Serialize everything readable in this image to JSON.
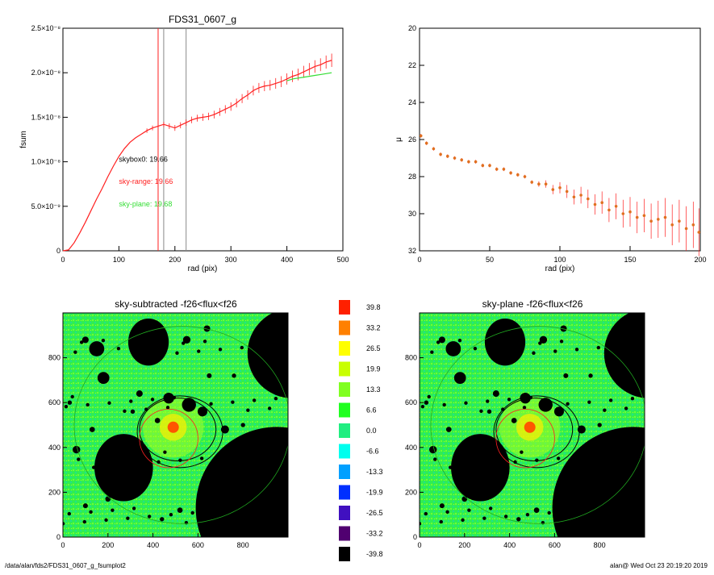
{
  "footer_left": "/data/alan/fds2/FDS31_0607_g_fsumplot2",
  "footer_right": "alan@  Wed Oct 23 20:19:20 2019",
  "colors": {
    "black": "#000000",
    "red": "#ff2020",
    "green": "#33dd33",
    "orange": "#e07020",
    "gray": "#888888"
  },
  "chart_data": [
    {
      "id": "fsum_profile",
      "type": "line",
      "title": "FDS31_0607_g",
      "xlabel": "rad (pix)",
      "ylabel": "fsum",
      "xlim": [
        0,
        500
      ],
      "ylim": [
        0,
        2.5e-08
      ],
      "x_ticks": [
        "0",
        "100",
        "200",
        "300",
        "400",
        "500"
      ],
      "y_ticks": [
        "0",
        "5.0×10⁻⁹",
        "1.0×10⁻⁸",
        "1.5×10⁻⁸",
        "2.0×10⁻⁸",
        "2.5×10⁻⁸"
      ],
      "vlines": [
        {
          "x": 170,
          "color": "red"
        },
        {
          "x": 180,
          "color": "gray"
        },
        {
          "x": 220,
          "color": "gray"
        }
      ],
      "annotations": [
        {
          "text": "skybox0: 19.66",
          "color": "black",
          "x": 100,
          "y": 1e-08
        },
        {
          "text": "sky-range: 19.66",
          "color": "red",
          "x": 100,
          "y": 7.5e-09
        },
        {
          "text": "sky-plane: 19.68",
          "color": "green",
          "x": 100,
          "y": 5e-09
        }
      ],
      "series": [
        {
          "color": "red",
          "x": [
            0,
            10,
            20,
            30,
            40,
            50,
            60,
            70,
            80,
            90,
            100,
            110,
            120,
            130,
            140,
            150,
            160,
            170,
            180,
            190,
            200,
            210,
            220,
            230,
            240,
            250,
            260,
            270,
            280,
            290,
            300,
            310,
            320,
            330,
            340,
            350,
            360,
            370,
            380,
            390,
            400,
            410,
            420,
            430,
            440,
            450,
            460,
            470,
            480
          ],
          "y": [
            0,
            1e-10,
            9e-10,
            2e-09,
            3.2e-09,
            4.5e-09,
            5.8e-09,
            7e-09,
            8.3e-09,
            9.5e-09,
            1.06e-08,
            1.15e-08,
            1.22e-08,
            1.27e-08,
            1.31e-08,
            1.35e-08,
            1.38e-08,
            1.4e-08,
            1.42e-08,
            1.4e-08,
            1.38e-08,
            1.41e-08,
            1.44e-08,
            1.47e-08,
            1.49e-08,
            1.5e-08,
            1.51e-08,
            1.53e-08,
            1.56e-08,
            1.59e-08,
            1.62e-08,
            1.66e-08,
            1.71e-08,
            1.75e-08,
            1.8e-08,
            1.83e-08,
            1.85e-08,
            1.86e-08,
            1.88e-08,
            1.9e-08,
            1.93e-08,
            1.96e-08,
            1.98e-08,
            2.01e-08,
            2.04e-08,
            2.07e-08,
            2.09e-08,
            2.12e-08,
            2.14e-08
          ]
        },
        {
          "color": "green",
          "x": [
            400,
            410,
            420,
            430,
            440,
            450,
            460,
            470,
            480
          ],
          "y": [
            1.91e-08,
            1.93e-08,
            1.94e-08,
            1.95e-08,
            1.96e-08,
            1.97e-08,
            1.98e-08,
            1.99e-08,
            2e-08
          ]
        }
      ]
    },
    {
      "id": "mu_profile",
      "type": "scatter",
      "xlabel": "rad (pix)",
      "ylabel": "μ",
      "xlim": [
        0,
        200
      ],
      "ylim": [
        32,
        20
      ],
      "x_ticks": [
        "0",
        "50",
        "100",
        "150",
        "200"
      ],
      "y_ticks": [
        "20",
        "22",
        "24",
        "26",
        "28",
        "30",
        "32"
      ],
      "points": [
        [
          1,
          25.8
        ],
        [
          5,
          26.2
        ],
        [
          10,
          26.5
        ],
        [
          15,
          26.8
        ],
        [
          20,
          26.9
        ],
        [
          25,
          27.0
        ],
        [
          30,
          27.1
        ],
        [
          35,
          27.2
        ],
        [
          40,
          27.2
        ],
        [
          45,
          27.4
        ],
        [
          50,
          27.4
        ],
        [
          55,
          27.6
        ],
        [
          60,
          27.6
        ],
        [
          65,
          27.8
        ],
        [
          70,
          27.9
        ],
        [
          75,
          28.0
        ],
        [
          80,
          28.3
        ],
        [
          85,
          28.4
        ],
        [
          90,
          28.4
        ],
        [
          95,
          28.7
        ],
        [
          100,
          28.6
        ],
        [
          105,
          28.8
        ],
        [
          110,
          29.1
        ],
        [
          115,
          29.0
        ],
        [
          120,
          29.2
        ],
        [
          125,
          29.5
        ],
        [
          130,
          29.4
        ],
        [
          135,
          29.8
        ],
        [
          140,
          29.6
        ],
        [
          145,
          30.0
        ],
        [
          150,
          29.9
        ],
        [
          155,
          30.2
        ],
        [
          160,
          30.1
        ],
        [
          165,
          30.4
        ],
        [
          170,
          30.3
        ],
        [
          175,
          30.2
        ],
        [
          180,
          30.6
        ],
        [
          185,
          30.4
        ],
        [
          190,
          30.8
        ],
        [
          195,
          30.6
        ],
        [
          199,
          31.0
        ]
      ]
    },
    {
      "id": "image_left",
      "type": "heatmap",
      "title": "sky-subtracted -f26<flux<f26",
      "xlim": [
        0,
        1000
      ],
      "ylim": [
        0,
        1000
      ],
      "x_ticks": [
        "0",
        "200",
        "400",
        "600",
        "800"
      ],
      "y_ticks": [
        "0",
        "200",
        "400",
        "600",
        "800"
      ]
    },
    {
      "id": "image_right",
      "type": "heatmap",
      "title": "sky-plane -f26<flux<f26",
      "xlim": [
        0,
        1000
      ],
      "ylim": [
        0,
        1000
      ],
      "x_ticks": [
        "0",
        "200",
        "400",
        "600",
        "800"
      ],
      "y_ticks": [
        "0",
        "200",
        "400",
        "600",
        "800"
      ]
    },
    {
      "id": "colorbar",
      "type": "table",
      "labels": [
        "39.8",
        "33.2",
        "26.5",
        "19.9",
        "13.3",
        "6.6",
        "0.0",
        "-6.6",
        "-13.3",
        "-19.9",
        "-26.5",
        "-33.2",
        "-39.8"
      ],
      "colors": [
        "#ff2000",
        "#ff8000",
        "#ffff00",
        "#c8ff00",
        "#80ff20",
        "#20ff20",
        "#20ee80",
        "#00ffee",
        "#00a0ff",
        "#0030ff",
        "#4010c0",
        "#500070",
        "#000000"
      ]
    }
  ]
}
